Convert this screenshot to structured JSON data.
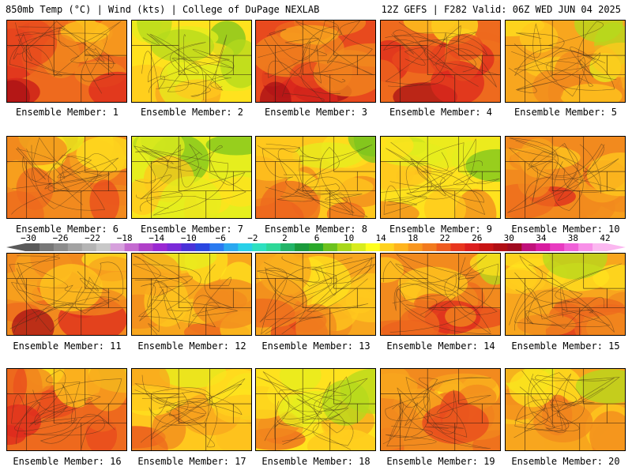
{
  "header": {
    "left": "850mb Temp (°C) | Wind (kts) | College of DuPage NEXLAB",
    "right": "12Z GEFS | F282 Valid: 06Z WED JUN 04 2025"
  },
  "colorbar": {
    "labels": [
      "−30",
      "−26",
      "−22",
      "−18",
      "−14",
      "−10",
      "−6",
      "−2",
      "2",
      "6",
      "10",
      "14",
      "18",
      "22",
      "26",
      "30",
      "34",
      "38",
      "42"
    ],
    "colors": [
      "#5a5a5a",
      "#777777",
      "#8c8c8c",
      "#a2a2a2",
      "#b4b4b4",
      "#c8c8c8",
      "#d6a0dc",
      "#c46ad0",
      "#b040c8",
      "#9a28d2",
      "#7a2ad8",
      "#4a32d8",
      "#2a46e0",
      "#2a7af0",
      "#2aa8f0",
      "#28d0e8",
      "#2ee0c0",
      "#2ed898",
      "#22b468",
      "#1a9a3c",
      "#2aa82a",
      "#6cc21e",
      "#a8d81c",
      "#d8ec1e",
      "#ffff1e",
      "#ffd21e",
      "#ffb41e",
      "#f8961e",
      "#f27a1e",
      "#ee5a1e",
      "#e8361e",
      "#dc1e1e",
      "#c81414",
      "#b00e14",
      "#a00a20",
      "#c0107a",
      "#d81ca0",
      "#e83ac0",
      "#f060d8",
      "#f890e8",
      "#fbb8f0"
    ]
  },
  "members": [
    {
      "label": "Ensemble Member: 1",
      "warmth": 0.72
    },
    {
      "label": "Ensemble Member: 2",
      "warmth": 0.35
    },
    {
      "label": "Ensemble Member: 3",
      "warmth": 0.75
    },
    {
      "label": "Ensemble Member: 4",
      "warmth": 0.7
    },
    {
      "label": "Ensemble Member: 5",
      "warmth": 0.5
    },
    {
      "label": "Ensemble Member: 6",
      "warmth": 0.62
    },
    {
      "label": "Ensemble Member: 7",
      "warmth": 0.3
    },
    {
      "label": "Ensemble Member: 8",
      "warmth": 0.48
    },
    {
      "label": "Ensemble Member: 9",
      "warmth": 0.4
    },
    {
      "label": "Ensemble Member: 10",
      "warmth": 0.65
    },
    {
      "label": "Ensemble Member: 11",
      "warmth": 0.64
    },
    {
      "label": "Ensemble Member: 12",
      "warmth": 0.52
    },
    {
      "label": "Ensemble Member: 13",
      "warmth": 0.55
    },
    {
      "label": "Ensemble Member: 14",
      "warmth": 0.58
    },
    {
      "label": "Ensemble Member: 15",
      "warmth": 0.55
    },
    {
      "label": "Ensemble Member: 16",
      "warmth": 0.66
    },
    {
      "label": "Ensemble Member: 17",
      "warmth": 0.45
    },
    {
      "label": "Ensemble Member: 18",
      "warmth": 0.4
    },
    {
      "label": "Ensemble Member: 19",
      "warmth": 0.6
    },
    {
      "label": "Ensemble Member: 20",
      "warmth": 0.5
    }
  ]
}
